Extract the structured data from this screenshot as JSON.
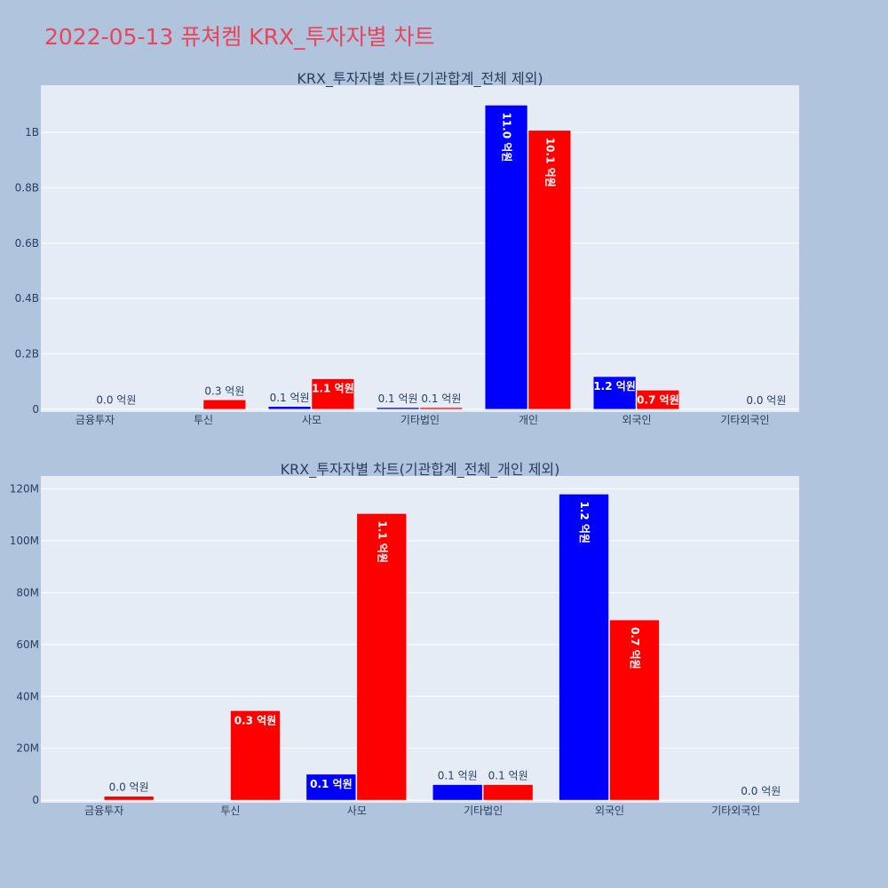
{
  "page": {
    "title": "2022-05-13 퓨쳐켐 KRX_투자자별 차트",
    "background": "#b0c4de",
    "title_color": "#e8455a"
  },
  "colors": {
    "buy": "#0000ff",
    "sell": "#ff0000"
  },
  "chart_data": [
    {
      "type": "bar",
      "title": "KRX_투자자별 차트(기관합계_전체 제외)",
      "categories": [
        "금융투자",
        "투신",
        "사모",
        "기타법인",
        "개인",
        "외국인",
        "기타외국인"
      ],
      "series": [
        {
          "color": "#0000ff",
          "values": [
            0,
            0,
            10000000,
            6000000,
            1098000000,
            118000000,
            0
          ],
          "labels": [
            "",
            "",
            "0.1 억원",
            "0.1 억원",
            "11.0 억원",
            "1.2 억원",
            ""
          ]
        },
        {
          "color": "#ff0000",
          "values": [
            1500000,
            34000000,
            110000000,
            6000000,
            1007000000,
            69000000,
            0
          ],
          "labels": [
            "0.0 억원",
            "0.3 억원",
            "1.1 억원",
            "0.1 억원",
            "10.1 억원",
            "0.7 억원",
            "0.0 억원"
          ]
        }
      ],
      "yticks": [
        0,
        200000000,
        400000000,
        600000000,
        800000000,
        1000000000
      ],
      "yticklabels": [
        "0",
        "0.2B",
        "0.4B",
        "0.6B",
        "0.8B",
        "1B"
      ],
      "ylim": [
        -10000000,
        1170000000
      ],
      "grid": true
    },
    {
      "type": "bar",
      "title": "KRX_투자자별 차트(기관합계_전체_개인 제외)",
      "categories": [
        "금융투자",
        "투신",
        "사모",
        "기타법인",
        "외국인",
        "기타외국인"
      ],
      "series": [
        {
          "color": "#0000ff",
          "values": [
            0,
            0,
            10000000,
            6000000,
            118000000,
            0
          ],
          "labels": [
            "",
            "",
            "0.1 억원",
            "0.1 억원",
            "1.2 억원",
            ""
          ]
        },
        {
          "color": "#ff0000",
          "values": [
            1500000,
            34500000,
            110500000,
            6000000,
            69500000,
            0
          ],
          "labels": [
            "0.0 억원",
            "0.3 억원",
            "1.1 억원",
            "0.1 억원",
            "0.7 억원",
            "0.0 억원"
          ]
        }
      ],
      "yticks": [
        0,
        20000000,
        40000000,
        60000000,
        80000000,
        100000000,
        120000000
      ],
      "yticklabels": [
        "0",
        "20M",
        "40M",
        "60M",
        "80M",
        "100M",
        "120M"
      ],
      "ylim": [
        -1000000,
        125000000
      ],
      "grid": true
    }
  ]
}
